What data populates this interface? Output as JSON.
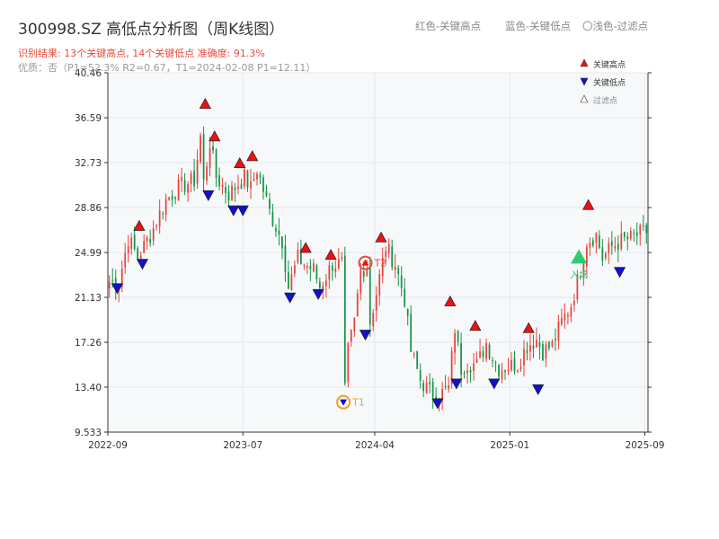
{
  "title": "300998.SZ 高低点分析图（周K线图）",
  "subtitle": "识别结果: 13个关键高点, 14个关键低点  准确度: 91.3%",
  "quality": "优质：否（P1=52.3%  R2=0.67，T1=2024-02-08 P1=12.11）",
  "legend_top": {
    "red": "红色-关键高点",
    "blue": "蓝色-关键低点",
    "light": "〇浅色-过滤点"
  },
  "legend_box": {
    "high": "关键高点",
    "low": "关键低点",
    "filtered": "过滤点"
  },
  "colors": {
    "up": "#e8413c",
    "down": "#149447",
    "high_marker": "#ee1111",
    "low_marker": "#1111cc",
    "t1": "#f0a020",
    "t2": "#e74c3c",
    "entry": "#2ecc71",
    "plot_bg": "#f6f8fa",
    "grid": "#e4e7ec"
  },
  "chart_data": {
    "type": "candlestick",
    "ylim": [
      9.533,
      40.46
    ],
    "y_ticks": [
      "40.46",
      "36.59",
      "32.73",
      "28.86",
      "24.99",
      "21.13",
      "17.26",
      "13.40",
      "9.533"
    ],
    "y_tick_values": [
      40.46,
      36.59,
      32.73,
      28.86,
      24.99,
      21.13,
      17.26,
      13.4,
      9.533
    ],
    "x_ticks": [
      {
        "label": "2022-09",
        "week": 0
      },
      {
        "label": "2023-07",
        "week": 43
      },
      {
        "label": "2024-04",
        "week": 85
      },
      {
        "label": "2025-01",
        "week": 128
      },
      {
        "label": "2025-09",
        "week": 171
      }
    ],
    "x_range_weeks": [
      0,
      172
    ],
    "anchors": [
      [
        0,
        22.5
      ],
      [
        3,
        22.4
      ],
      [
        6,
        26.2
      ],
      [
        9,
        24.6
      ],
      [
        13,
        26.5
      ],
      [
        18,
        29.5
      ],
      [
        22,
        30.6
      ],
      [
        27,
        31.2
      ],
      [
        29,
        35.0
      ],
      [
        30,
        31.0
      ],
      [
        32,
        34.5
      ],
      [
        34,
        31.5
      ],
      [
        38,
        30.0
      ],
      [
        41,
        30.9
      ],
      [
        43,
        31.5
      ],
      [
        45,
        30.5
      ],
      [
        47,
        32.2
      ],
      [
        51,
        28.5
      ],
      [
        55,
        26.0
      ],
      [
        57,
        22.0
      ],
      [
        60,
        24.5
      ],
      [
        62,
        24.0
      ],
      [
        65,
        23.5
      ],
      [
        67,
        22.0
      ],
      [
        71,
        24.0
      ],
      [
        74,
        24.0
      ],
      [
        75,
        13.0
      ],
      [
        76,
        16.5
      ],
      [
        78,
        19.0
      ],
      [
        80,
        23.5
      ],
      [
        82,
        23.8
      ],
      [
        83,
        19.0
      ],
      [
        85,
        21.5
      ],
      [
        88,
        25.5
      ],
      [
        91,
        24.0
      ],
      [
        94,
        21.0
      ],
      [
        96,
        16.5
      ],
      [
        99,
        14.0
      ],
      [
        102,
        13.0
      ],
      [
        105,
        12.7
      ],
      [
        108,
        13.3
      ],
      [
        110,
        18.5
      ],
      [
        112,
        15.0
      ],
      [
        114,
        15.5
      ],
      [
        117,
        15.3
      ],
      [
        120,
        17.2
      ],
      [
        122,
        16.0
      ],
      [
        124,
        15.0
      ],
      [
        127,
        15.2
      ],
      [
        130,
        15.4
      ],
      [
        133,
        17.0
      ],
      [
        136,
        17.5
      ],
      [
        138,
        16.5
      ],
      [
        141,
        17.0
      ],
      [
        144,
        19.0
      ],
      [
        147,
        20.5
      ],
      [
        150,
        23.5
      ],
      [
        152,
        26.0
      ],
      [
        155,
        26.5
      ],
      [
        157,
        24.5
      ],
      [
        160,
        25.5
      ],
      [
        163,
        26.0
      ],
      [
        166,
        26.2
      ],
      [
        168,
        26.5
      ],
      [
        171,
        26.8
      ]
    ],
    "key_highs": [
      {
        "week": 10,
        "price": 27.2
      },
      {
        "week": 31,
        "price": 37.7
      },
      {
        "week": 34,
        "price": 34.9
      },
      {
        "week": 42,
        "price": 32.6
      },
      {
        "week": 46,
        "price": 33.2
      },
      {
        "week": 63,
        "price": 25.3
      },
      {
        "week": 71,
        "price": 24.7
      },
      {
        "week": 87,
        "price": 26.2
      },
      {
        "week": 109,
        "price": 20.7
      },
      {
        "week": 117,
        "price": 18.6
      },
      {
        "week": 134,
        "price": 18.4
      },
      {
        "week": 153,
        "price": 29.0
      }
    ],
    "key_lows": [
      {
        "week": 3,
        "price": 22.0
      },
      {
        "week": 11,
        "price": 24.1
      },
      {
        "week": 32,
        "price": 30.0
      },
      {
        "week": 40,
        "price": 28.7
      },
      {
        "week": 43,
        "price": 28.7
      },
      {
        "week": 58,
        "price": 21.2
      },
      {
        "week": 67,
        "price": 21.5
      },
      {
        "week": 82,
        "price": 18.0
      },
      {
        "week": 105,
        "price": 12.1
      },
      {
        "week": 111,
        "price": 13.8
      },
      {
        "week": 123,
        "price": 13.8
      },
      {
        "week": 137,
        "price": 13.3
      },
      {
        "week": 163,
        "price": 23.4
      }
    ],
    "t1": {
      "label": "T1",
      "week": 75,
      "price": 12.11
    },
    "t2": {
      "label": "T2",
      "week": 82,
      "price": 24.1
    },
    "entry": {
      "label": "入场",
      "week": 150,
      "price": 24.5
    }
  }
}
